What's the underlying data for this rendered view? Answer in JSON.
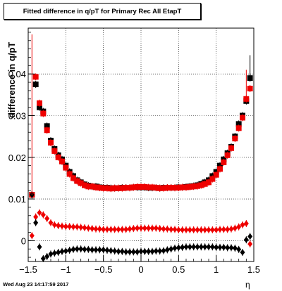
{
  "timestamp": "Wed Aug 23 14:17:59 2017",
  "chart_data": {
    "type": "scatter",
    "title": "Fitted difference in q/pT for Primary Rec All EtapT",
    "xlabel": "η",
    "ylabel": "difference in q/pT",
    "xlim": [
      -1.5,
      1.5
    ],
    "ylim": [
      -0.005,
      0.051
    ],
    "x_ticks": [
      "−1.5",
      "−1",
      "−0.5",
      "0",
      "0.5",
      "1",
      "1.5"
    ],
    "y_ticks": [
      "0",
      "0.01",
      "0.02",
      "0.03",
      "0.04"
    ],
    "grid": true,
    "x": [
      -1.45,
      -1.4,
      -1.35,
      -1.3,
      -1.25,
      -1.2,
      -1.15,
      -1.1,
      -1.05,
      -1.0,
      -0.95,
      -0.9,
      -0.85,
      -0.8,
      -0.75,
      -0.7,
      -0.65,
      -0.6,
      -0.55,
      -0.5,
      -0.45,
      -0.4,
      -0.35,
      -0.3,
      -0.25,
      -0.2,
      -0.15,
      -0.1,
      -0.05,
      0.0,
      0.05,
      0.1,
      0.15,
      0.2,
      0.25,
      0.3,
      0.35,
      0.4,
      0.45,
      0.5,
      0.55,
      0.6,
      0.65,
      0.7,
      0.75,
      0.8,
      0.85,
      0.9,
      0.95,
      1.0,
      1.05,
      1.1,
      1.15,
      1.2,
      1.25,
      1.3,
      1.35,
      1.4,
      1.45
    ],
    "series": [
      {
        "name": "",
        "color": "#000000",
        "marker": "square",
        "values": [
          0.011,
          0.0375,
          0.032,
          0.031,
          0.0275,
          0.024,
          0.022,
          0.0205,
          0.0195,
          0.018,
          0.0165,
          0.0155,
          0.0145,
          0.014,
          0.0135,
          0.0132,
          0.013,
          0.013,
          0.0128,
          0.0127,
          0.0127,
          0.0126,
          0.0126,
          0.0126,
          0.0127,
          0.0127,
          0.0127,
          0.0128,
          0.0128,
          0.0128,
          0.0128,
          0.0127,
          0.0127,
          0.0127,
          0.0126,
          0.0127,
          0.0127,
          0.0127,
          0.0127,
          0.0128,
          0.0128,
          0.0129,
          0.013,
          0.0131,
          0.0133,
          0.0136,
          0.014,
          0.0145,
          0.0155,
          0.0165,
          0.018,
          0.0195,
          0.021,
          0.0225,
          0.025,
          0.028,
          0.03,
          0.0335,
          0.039
        ]
      },
      {
        "name": "",
        "color": "#ee0000",
        "marker": "square",
        "values": [
          0.011,
          0.0393,
          0.033,
          0.0305,
          0.0265,
          0.0235,
          0.0215,
          0.02,
          0.019,
          0.0175,
          0.016,
          0.015,
          0.0143,
          0.0138,
          0.0133,
          0.013,
          0.013,
          0.0128,
          0.0127,
          0.0126,
          0.0126,
          0.0125,
          0.0126,
          0.0126,
          0.0126,
          0.0127,
          0.0127,
          0.0128,
          0.0129,
          0.0129,
          0.0129,
          0.0128,
          0.0128,
          0.0127,
          0.0126,
          0.0126,
          0.0127,
          0.0127,
          0.0127,
          0.0127,
          0.0128,
          0.0128,
          0.0129,
          0.013,
          0.0131,
          0.0133,
          0.0136,
          0.014,
          0.0148,
          0.0158,
          0.0172,
          0.0188,
          0.0205,
          0.0222,
          0.0245,
          0.027,
          0.0295,
          0.034,
          0.0365
        ]
      },
      {
        "name": "",
        "color": "#ee0000",
        "marker": "diamond",
        "values": [
          0.0012,
          0.0057,
          0.0067,
          0.0062,
          0.0053,
          0.0043,
          0.0038,
          0.0036,
          0.0035,
          0.0034,
          0.0034,
          0.0033,
          0.0033,
          0.0032,
          0.0031,
          0.003,
          0.0029,
          0.0028,
          0.0028,
          0.0027,
          0.0027,
          0.0027,
          0.0027,
          0.0027,
          0.0027,
          0.0027,
          0.0028,
          0.0029,
          0.003,
          0.003,
          0.003,
          0.003,
          0.003,
          0.003,
          0.0029,
          0.0028,
          0.0028,
          0.0027,
          0.0027,
          0.0026,
          0.0026,
          0.0026,
          0.0026,
          0.0026,
          0.0026,
          0.0026,
          0.0026,
          0.0026,
          0.0026,
          0.0026,
          0.0027,
          0.0027,
          0.0027,
          0.0028,
          0.003,
          0.0033,
          0.0038,
          0.0041,
          -0.0008
        ]
      },
      {
        "name": "",
        "color": "#000000",
        "marker": "diamond",
        "values": [
          0.011,
          0.0043,
          -0.0015,
          -0.0043,
          -0.0038,
          -0.0032,
          -0.003,
          -0.0028,
          -0.0026,
          -0.0025,
          -0.0023,
          -0.0021,
          -0.002,
          -0.002,
          -0.0021,
          -0.0021,
          -0.0022,
          -0.0022,
          -0.0022,
          -0.0022,
          -0.0023,
          -0.0024,
          -0.0025,
          -0.0026,
          -0.0026,
          -0.0027,
          -0.0027,
          -0.0027,
          -0.0027,
          -0.0026,
          -0.0026,
          -0.0026,
          -0.0026,
          -0.0025,
          -0.0025,
          -0.0024,
          -0.0022,
          -0.002,
          -0.0018,
          -0.0017,
          -0.0016,
          -0.0015,
          -0.0015,
          -0.0015,
          -0.0015,
          -0.0015,
          -0.0015,
          -0.0015,
          -0.0015,
          -0.0016,
          -0.0016,
          -0.0016,
          -0.0017,
          -0.0017,
          -0.0018,
          -0.0021,
          -0.0028,
          0.0002,
          0.001
        ]
      }
    ]
  }
}
